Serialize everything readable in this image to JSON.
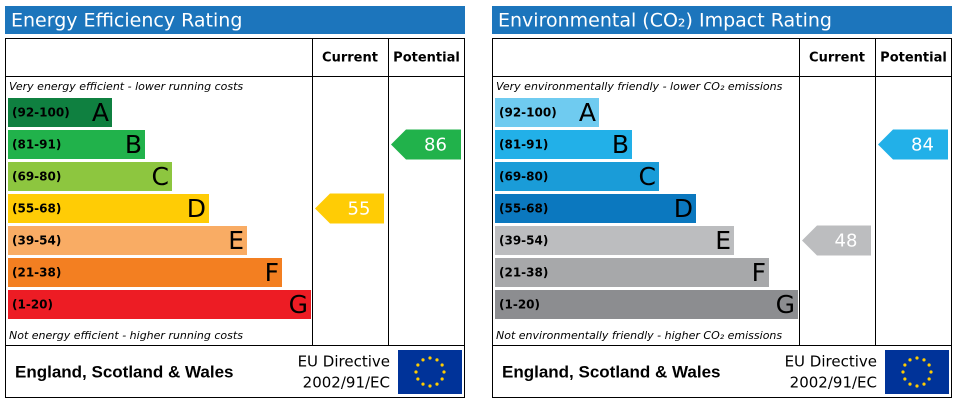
{
  "panels": [
    {
      "title": "Energy Efficiency Rating",
      "header": {
        "current": "Current",
        "potential": "Potential"
      },
      "top_note": "Very energy efficient - lower running costs",
      "bottom_note": "Not energy efficient - higher running costs",
      "bands": [
        {
          "range": "(92-100)",
          "letter": "A",
          "color": "#0f8040"
        },
        {
          "range": "(81-91)",
          "letter": "B",
          "color": "#21b24b"
        },
        {
          "range": "(69-80)",
          "letter": "C",
          "color": "#8dc63f"
        },
        {
          "range": "(55-68)",
          "letter": "D",
          "color": "#ffcc05"
        },
        {
          "range": "(39-54)",
          "letter": "E",
          "color": "#f9ac64"
        },
        {
          "range": "(21-38)",
          "letter": "F",
          "color": "#f37f21"
        },
        {
          "range": "(1-20)",
          "letter": "G",
          "color": "#ed1c24"
        }
      ],
      "current": 55,
      "potential": 86,
      "footer": {
        "region": "England, Scotland & Wales",
        "directive": [
          "EU Directive",
          "2002/91/EC"
        ]
      }
    },
    {
      "title": "Environmental (CO₂) Impact Rating",
      "header": {
        "current": "Current",
        "potential": "Potential"
      },
      "top_note": "Very environmentally friendly - lower CO₂ emissions",
      "bottom_note": "Not environmentally friendly - higher CO₂ emissions",
      "bands": [
        {
          "range": "(92-100)",
          "letter": "A",
          "color": "#6fcbf0"
        },
        {
          "range": "(81-91)",
          "letter": "B",
          "color": "#22b0e8"
        },
        {
          "range": "(69-80)",
          "letter": "C",
          "color": "#1a9cd8"
        },
        {
          "range": "(55-68)",
          "letter": "D",
          "color": "#0b78bf"
        },
        {
          "range": "(39-54)",
          "letter": "E",
          "color": "#bcbdbf"
        },
        {
          "range": "(21-38)",
          "letter": "F",
          "color": "#a7a8aa"
        },
        {
          "range": "(1-20)",
          "letter": "G",
          "color": "#8c8d90"
        }
      ],
      "current": 48,
      "potential": 84,
      "footer": {
        "region": "England, Scotland & Wales",
        "directive": [
          "EU Directive",
          "2002/91/EC"
        ]
      }
    }
  ]
}
